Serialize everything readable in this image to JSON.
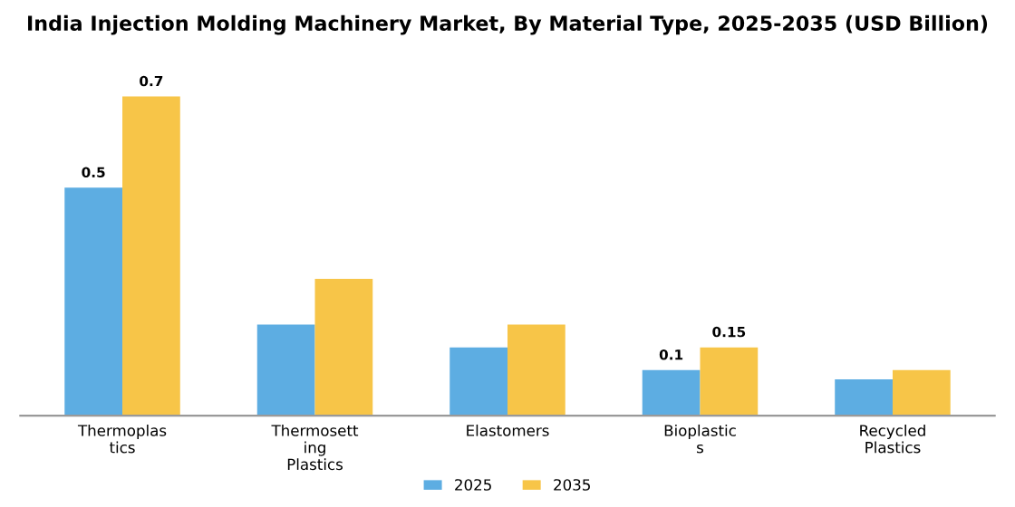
{
  "chart_data": {
    "type": "bar",
    "title": "India Injection Molding Machinery Market, By Material Type, 2025-2035 (USD Billion)",
    "categories": [
      "Thermoplas\ntics",
      "Thermosett\ning\nPlastics",
      "Elastomers",
      "Bioplastic\ns",
      "Recycled\nPlastics"
    ],
    "series": [
      {
        "name": "2025",
        "color": "#5dade2",
        "values": [
          0.5,
          0.2,
          0.15,
          0.1,
          0.08
        ],
        "value_labels": [
          "0.5",
          null,
          null,
          "0.1",
          null
        ]
      },
      {
        "name": "2035",
        "color": "#f7c548",
        "values": [
          0.7,
          0.3,
          0.2,
          0.15,
          0.1
        ],
        "value_labels": [
          "0.7",
          null,
          null,
          "0.15",
          null
        ]
      }
    ],
    "legend": "bottom",
    "grid": false
  }
}
